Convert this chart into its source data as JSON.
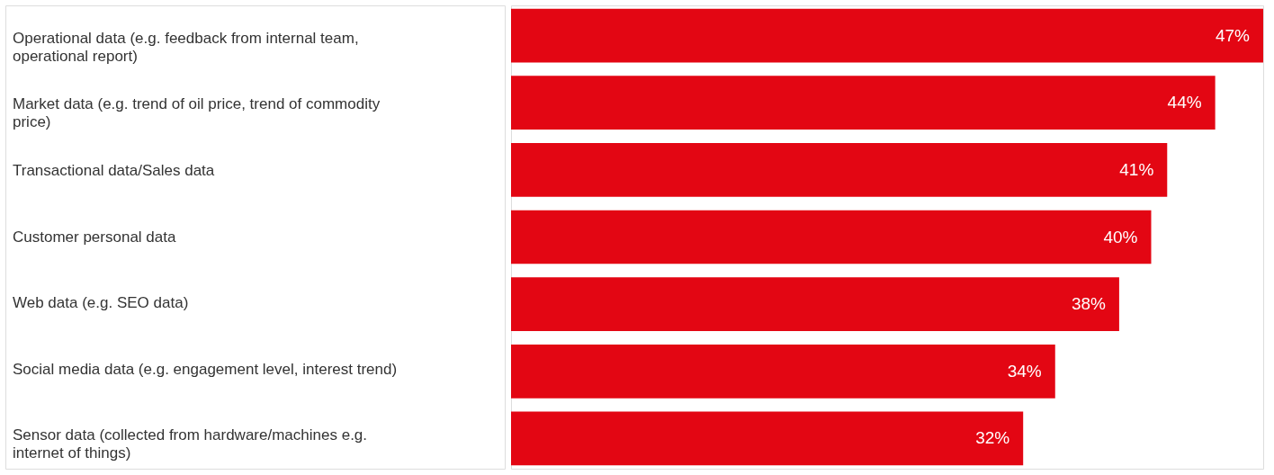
{
  "chart_data": {
    "type": "bar",
    "orientation": "horizontal",
    "categories": [
      "Operational data (e.g. feedback from internal team, operational report)",
      "Market data (e.g. trend of oil price, trend of commodity price)",
      "Transactional data/Sales data",
      "Customer personal data",
      "Web data (e.g. SEO data)",
      "Social media data (e.g. engagement level, interest trend)",
      "Sensor data (collected from hardware/machines e.g. internet of things)"
    ],
    "values": [
      47,
      44,
      41,
      40,
      38,
      34,
      32
    ],
    "value_labels": [
      "47%",
      "44%",
      "41%",
      "40%",
      "38%",
      "34%",
      "32%"
    ],
    "xlim": [
      0,
      47
    ],
    "color": "#e30613",
    "tick_labels": "y"
  }
}
